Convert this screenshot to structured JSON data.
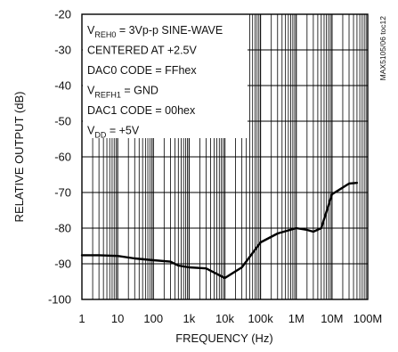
{
  "chart_data": {
    "type": "line",
    "xlabel": "FREQUENCY (Hz)",
    "ylabel": "RELATIVE OUTPUT (dB)",
    "xscale": "log",
    "xlim": [
      1,
      100000000
    ],
    "ylim": [
      -100,
      -20
    ],
    "grid": true,
    "x_tick_labels": [
      "1",
      "10",
      "100",
      "1k",
      "10k",
      "100k",
      "1M",
      "10M",
      "100M"
    ],
    "y_tick_labels": [
      "-20",
      "-30",
      "-40",
      "-50",
      "-60",
      "-70",
      "-80",
      "-90",
      "-100"
    ],
    "side_label": "MAX5105/06 toc12",
    "annotations": [
      {
        "main": "V",
        "sub": "REH0",
        "rest": " = 3Vp-p SINE-WAVE"
      },
      {
        "main": "CENTERED AT +2.5V",
        "sub": "",
        "rest": ""
      },
      {
        "main": "DAC0 CODE = FFhex",
        "sub": "",
        "rest": ""
      },
      {
        "main": "V",
        "sub": "REFH1",
        "rest": " = GND"
      },
      {
        "main": "DAC1 CODE = 00hex",
        "sub": "",
        "rest": ""
      },
      {
        "main": "V",
        "sub": "DD",
        "rest": " = +5V"
      }
    ],
    "series": [
      {
        "x": [
          1,
          3,
          10,
          30,
          100,
          300,
          500,
          1000,
          3000,
          10000,
          30000,
          100000,
          300000,
          1000000,
          2000000,
          3000000,
          5000000,
          10000000,
          30000000,
          50000000
        ],
        "y": [
          -87.6,
          -87.6,
          -87.8,
          -88.5,
          -89.0,
          -89.4,
          -90.5,
          -91.0,
          -91.3,
          -94.0,
          -91.0,
          -84.0,
          -81.5,
          -80.0,
          -80.5,
          -81.0,
          -80.0,
          -70.5,
          -67.5,
          -67.3
        ]
      }
    ]
  }
}
